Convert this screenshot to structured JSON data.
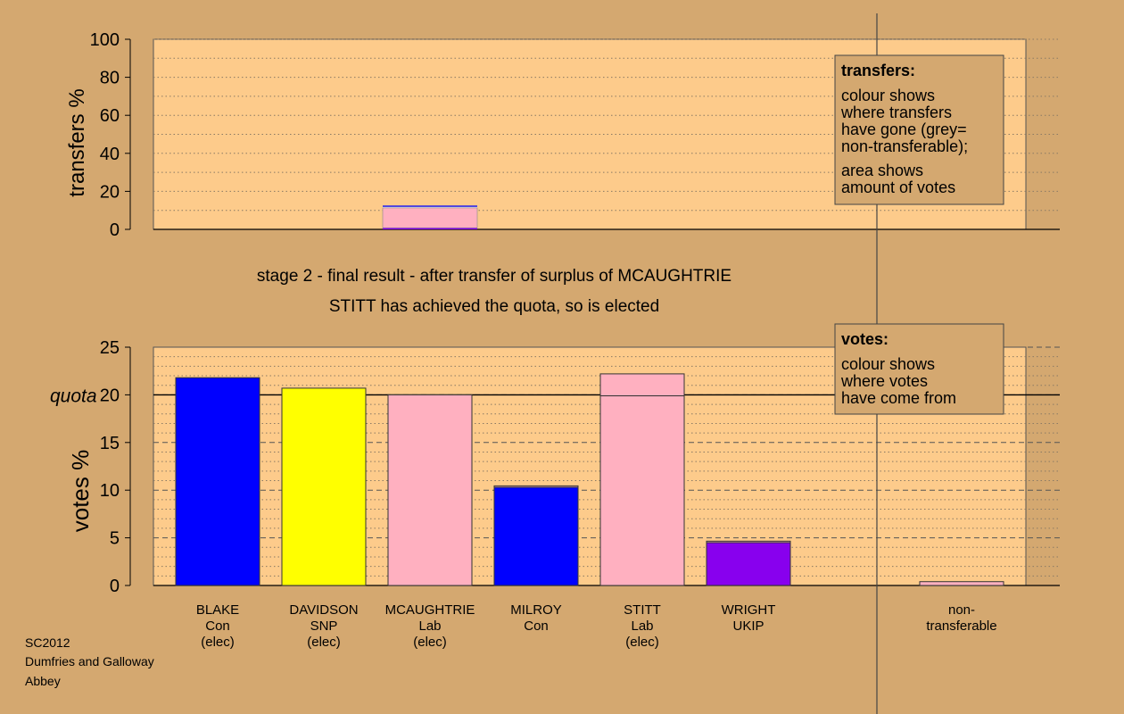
{
  "colors": {
    "background": "#d4a870",
    "plot_area": "#fdcb8b",
    "legend_box": "#d4a870",
    "grid_dotted": "#8a7a64",
    "grid_dashed": "#555555",
    "Con": "#0000ff",
    "SNP": "#ffff00",
    "Lab": "#ffb0c0",
    "UKIP": "#8800ee",
    "nontransferable": "#c8c8c8"
  },
  "footer": {
    "line1": "SC2012",
    "line2": "Dumfries and Galloway",
    "line3": "Abbey"
  },
  "headings": {
    "stage": "stage 2 - final result - after transfer of surplus of MCAUGHTRIE",
    "result": "STITT has achieved the quota, so is elected"
  },
  "legends": {
    "transfers": {
      "title": "transfers:",
      "lines": [
        "colour shows",
        "where transfers",
        "have gone (grey=",
        "non-transferable);",
        "area shows",
        "amount of votes"
      ]
    },
    "votes": {
      "title": "votes:",
      "lines": [
        "colour shows",
        "where votes",
        "have come from"
      ]
    }
  },
  "chart_data": [
    {
      "type": "bar",
      "name": "transfers",
      "ylabel": "transfers %",
      "ylim": [
        0,
        100
      ],
      "yticks": [
        0,
        20,
        40,
        60,
        80,
        100
      ],
      "grid": true,
      "legend_position": "top-right",
      "categories": [
        "BLAKE",
        "DAVIDSON",
        "MCAUGHTRIE",
        "MILROY",
        "STITT",
        "WRIGHT",
        "non-transferable"
      ],
      "transfer_bar": {
        "category_index": 2,
        "segments": [
          {
            "party": "UKIP",
            "value": 0.8
          },
          {
            "party": "Lab",
            "value": 10.5
          },
          {
            "party": "nontransferable",
            "value": 0.6
          },
          {
            "party": "Con",
            "value": 0.6
          }
        ]
      }
    },
    {
      "type": "bar",
      "name": "votes",
      "ylabel": "votes %",
      "ylim": [
        0,
        25
      ],
      "yticks": [
        0,
        5,
        10,
        15,
        20,
        25
      ],
      "quota": 20,
      "quota_label": "quota",
      "grid": true,
      "legend_position": "top-right",
      "candidates": [
        {
          "name": "BLAKE",
          "party": "Con",
          "status": "(elec)",
          "segments": [
            {
              "party": "Con",
              "value": 21.8
            }
          ]
        },
        {
          "name": "DAVIDSON",
          "party": "SNP",
          "status": "(elec)",
          "segments": [
            {
              "party": "SNP",
              "value": 20.7
            }
          ]
        },
        {
          "name": "MCAUGHTRIE",
          "party": "Lab",
          "status": "(elec)",
          "segments": [
            {
              "party": "Lab",
              "value": 20.0
            }
          ]
        },
        {
          "name": "MILROY",
          "party": "Con",
          "status": "",
          "segments": [
            {
              "party": "Con",
              "value": 10.3
            },
            {
              "party": "Lab",
              "value": 0.15
            }
          ]
        },
        {
          "name": "STITT",
          "party": "Lab",
          "status": "(elec)",
          "segments": [
            {
              "party": "Lab",
              "value": 19.9
            },
            {
              "party": "Lab",
              "value": 2.3
            }
          ]
        },
        {
          "name": "WRIGHT",
          "party": "UKIP",
          "status": "",
          "segments": [
            {
              "party": "UKIP",
              "value": 4.5
            },
            {
              "party": "Lab",
              "value": 0.15
            }
          ]
        }
      ],
      "nontransferable": {
        "label_line1": "non-",
        "label_line2": "transferable",
        "segments": [
          {
            "party": "Lab",
            "value": 0.4
          }
        ]
      }
    }
  ]
}
